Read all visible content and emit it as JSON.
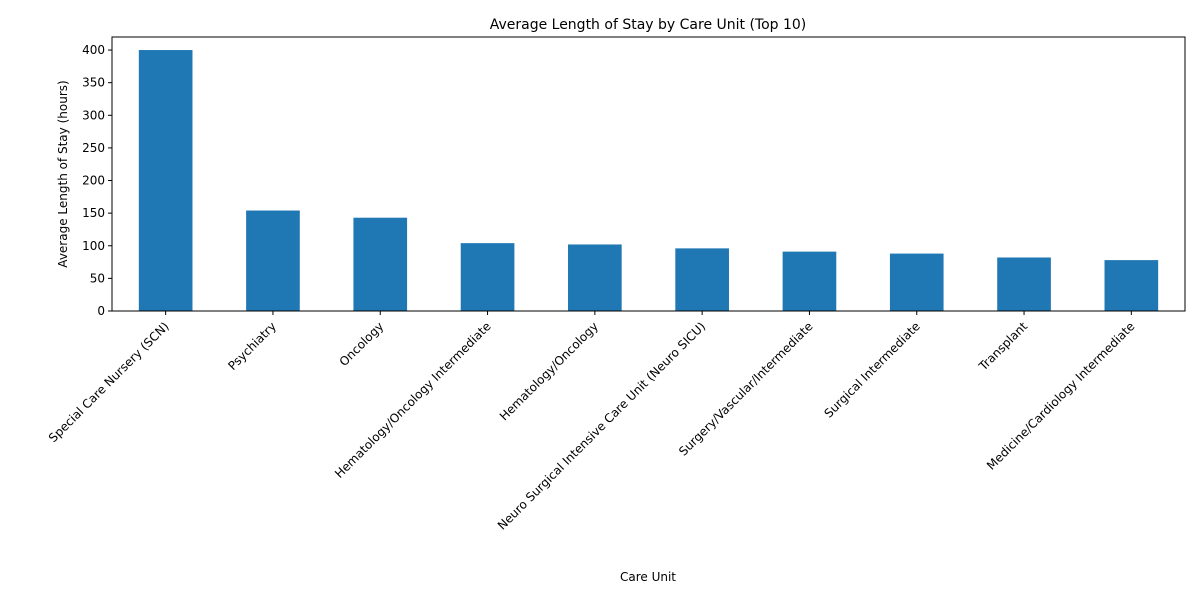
{
  "chart_data": {
    "type": "bar",
    "title": "Average Length of Stay by Care Unit (Top 10)",
    "xlabel": "Care Unit",
    "ylabel": "Average Length of Stay (hours)",
    "categories": [
      "Special Care Nursery (SCN)",
      "Psychiatry",
      "Oncology",
      "Hematology/Oncology Intermediate",
      "Hematology/Oncology",
      "Neuro Surgical Intensive Care Unit (Neuro SICU)",
      "Surgery/Vascular/Intermediate",
      "Surgical Intermediate",
      "Transplant",
      "Medicine/Cardiology Intermediate"
    ],
    "values": [
      400,
      154,
      143,
      104,
      102,
      96,
      91,
      88,
      82,
      78
    ],
    "ylim": [
      0,
      420
    ],
    "yticks": [
      0,
      50,
      100,
      150,
      200,
      250,
      300,
      350,
      400
    ],
    "bar_color": "#1f77b4",
    "grid": false,
    "legend": "none"
  }
}
